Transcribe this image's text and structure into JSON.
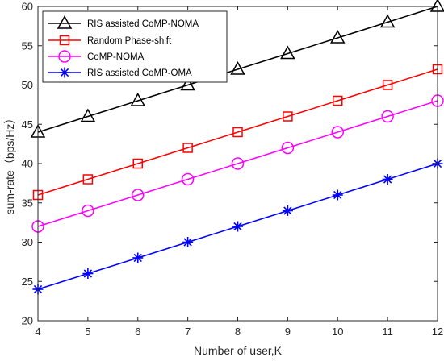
{
  "chart_data": {
    "type": "line",
    "title": "",
    "xlabel": "Number of user,K",
    "ylabel": "sum-rate（bps/Hz）",
    "xlim": [
      4,
      12
    ],
    "ylim": [
      20,
      60
    ],
    "xticks": [
      4,
      5,
      6,
      7,
      8,
      9,
      10,
      11,
      12
    ],
    "yticks": [
      20,
      25,
      30,
      35,
      40,
      45,
      50,
      55,
      60
    ],
    "grid": false,
    "legend_position": "top-left",
    "x": [
      4,
      5,
      6,
      7,
      8,
      9,
      10,
      11,
      12
    ],
    "series": [
      {
        "name": "RIS assisted CoMP-NOMA",
        "color": "#000000",
        "marker": "triangle",
        "values": [
          44,
          46,
          48,
          50,
          52,
          54,
          56,
          58,
          60
        ]
      },
      {
        "name": "Random Phase-shift",
        "color": "#ff0000",
        "marker": "square",
        "values": [
          36,
          38,
          40,
          42,
          44,
          46,
          48,
          50,
          52
        ]
      },
      {
        "name": "CoMP-NOMA",
        "color": "#ff00ff",
        "marker": "circle",
        "values": [
          32,
          34,
          36,
          38,
          40,
          42,
          44,
          46,
          48
        ]
      },
      {
        "name": "RIS assisted CoMP-OMA",
        "color": "#0000ff",
        "marker": "asterisk",
        "values": [
          24,
          26,
          28,
          30,
          32,
          34,
          36,
          38,
          40
        ]
      }
    ]
  }
}
